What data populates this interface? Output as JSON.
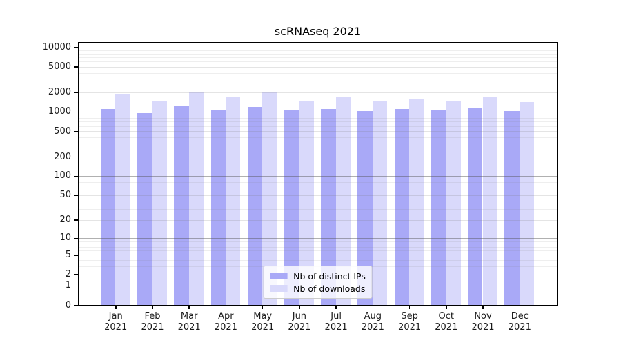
{
  "title": "scRNAseq 2021",
  "chart_data": {
    "type": "bar",
    "title": "scRNAseq 2021",
    "categories": [
      "Jan\n2021",
      "Feb\n2021",
      "Mar\n2021",
      "Apr\n2021",
      "May\n2021",
      "Jun\n2021",
      "Jul\n2021",
      "Aug\n2021",
      "Sep\n2021",
      "Oct\n2021",
      "Nov\n2021",
      "Dec\n2021"
    ],
    "series": [
      {
        "name": "Nb of distinct IPs",
        "color": "#a9a9f7",
        "values": [
          1100,
          960,
          1210,
          1060,
          1200,
          1070,
          1100,
          1020,
          1100,
          1060,
          1140,
          1030
        ]
      },
      {
        "name": "Nb of downloads",
        "color": "#d9d9fb",
        "values": [
          1900,
          1500,
          1990,
          1680,
          1980,
          1480,
          1700,
          1450,
          1600,
          1500,
          1730,
          1410
        ]
      }
    ],
    "xlabel": "",
    "ylabel": "",
    "yscale": "log1p",
    "ylim": [
      0,
      12000
    ],
    "yticks": [
      0,
      1,
      2,
      5,
      10,
      20,
      50,
      100,
      200,
      500,
      1000,
      2000,
      5000,
      10000
    ],
    "grid": true,
    "legend_position": "lower center"
  }
}
